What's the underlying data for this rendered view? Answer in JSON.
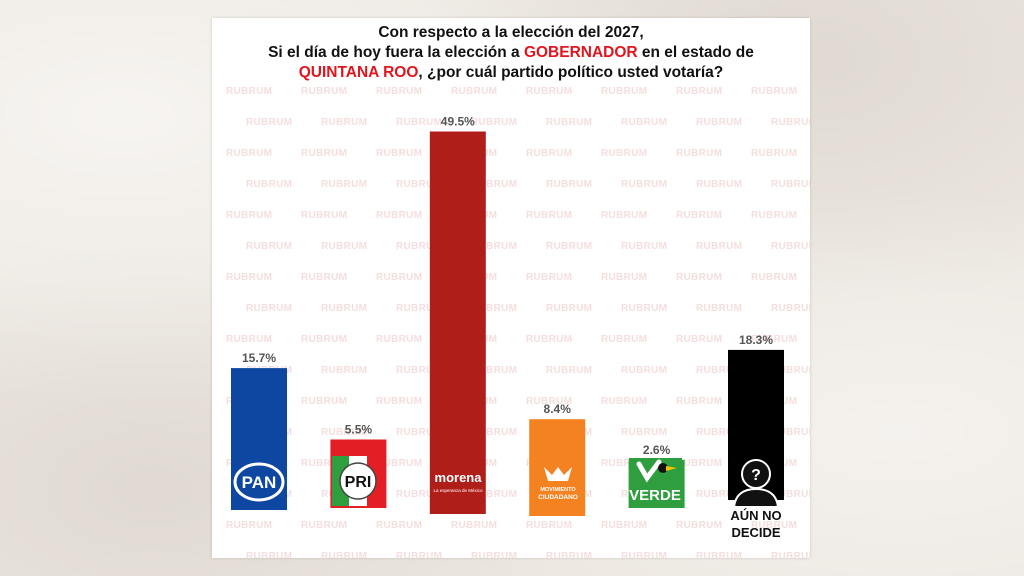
{
  "title": {
    "line1": "Con respecto a la elección del 2027,",
    "line2_pre": "Si el día de hoy fuera la elección a ",
    "line2_highlight": "GOBERNADOR",
    "line2_post": " en el estado de",
    "line3_highlight": "QUINTANA ROO",
    "line3_post": ", ¿por cuál partido político usted votaría?"
  },
  "watermark": "RUBRUM",
  "chart_data": {
    "type": "bar",
    "categories": [
      "PAN",
      "PRI",
      "morena",
      "MOVIMIENTO CIUDADANO",
      "VERDE",
      "AÚN NO DECIDE"
    ],
    "values": [
      15.7,
      5.5,
      49.5,
      8.4,
      2.6,
      18.3
    ],
    "value_labels": [
      "15.7%",
      "5.5%",
      "49.5%",
      "8.4%",
      "2.6%",
      "18.3%"
    ],
    "colors": [
      "#0d47a1",
      "#e31e24",
      "#b01e1a",
      "#f58220",
      "#2e9e3e",
      "#000000"
    ],
    "undecided_label_line1": "AÚN NO",
    "undecided_label_line2": "DECIDE",
    "ylim": [
      0,
      50
    ],
    "grid": false
  },
  "logos": {
    "pan": "PAN",
    "pri": "PRI",
    "morena": "morena",
    "morena_tagline": "La esperanza de México",
    "mc_line1": "MOVIMIENTO",
    "mc_line2": "CIUDADANO",
    "verde": "VERDE",
    "undecided_icon": "?"
  }
}
